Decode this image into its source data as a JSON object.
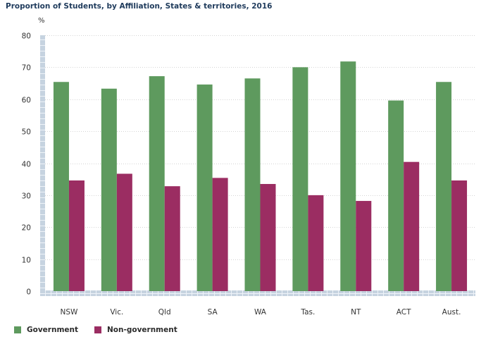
{
  "chart_data": {
    "type": "bar",
    "title": "Proportion of Students, by Affiliation, States & territories, 2016",
    "ylabel": "%",
    "xlabel": "",
    "ylim": [
      0,
      80
    ],
    "yticks": [
      0,
      10,
      20,
      30,
      40,
      50,
      60,
      70,
      80
    ],
    "grid": true,
    "legend_position": "bottom-left",
    "categories": [
      "NSW",
      "Vic.",
      "Qld",
      "SA",
      "WA",
      "Tas.",
      "NT",
      "ACT",
      "Aust."
    ],
    "series": [
      {
        "name": "Government",
        "color": "#5e9a5e",
        "values": [
          65.4,
          63.3,
          67.2,
          64.6,
          66.5,
          70.0,
          71.8,
          59.6,
          65.4
        ]
      },
      {
        "name": "Non-government",
        "color": "#9b2d62",
        "values": [
          34.6,
          36.7,
          32.8,
          35.4,
          33.5,
          30.0,
          28.2,
          40.4,
          34.6
        ]
      }
    ]
  }
}
